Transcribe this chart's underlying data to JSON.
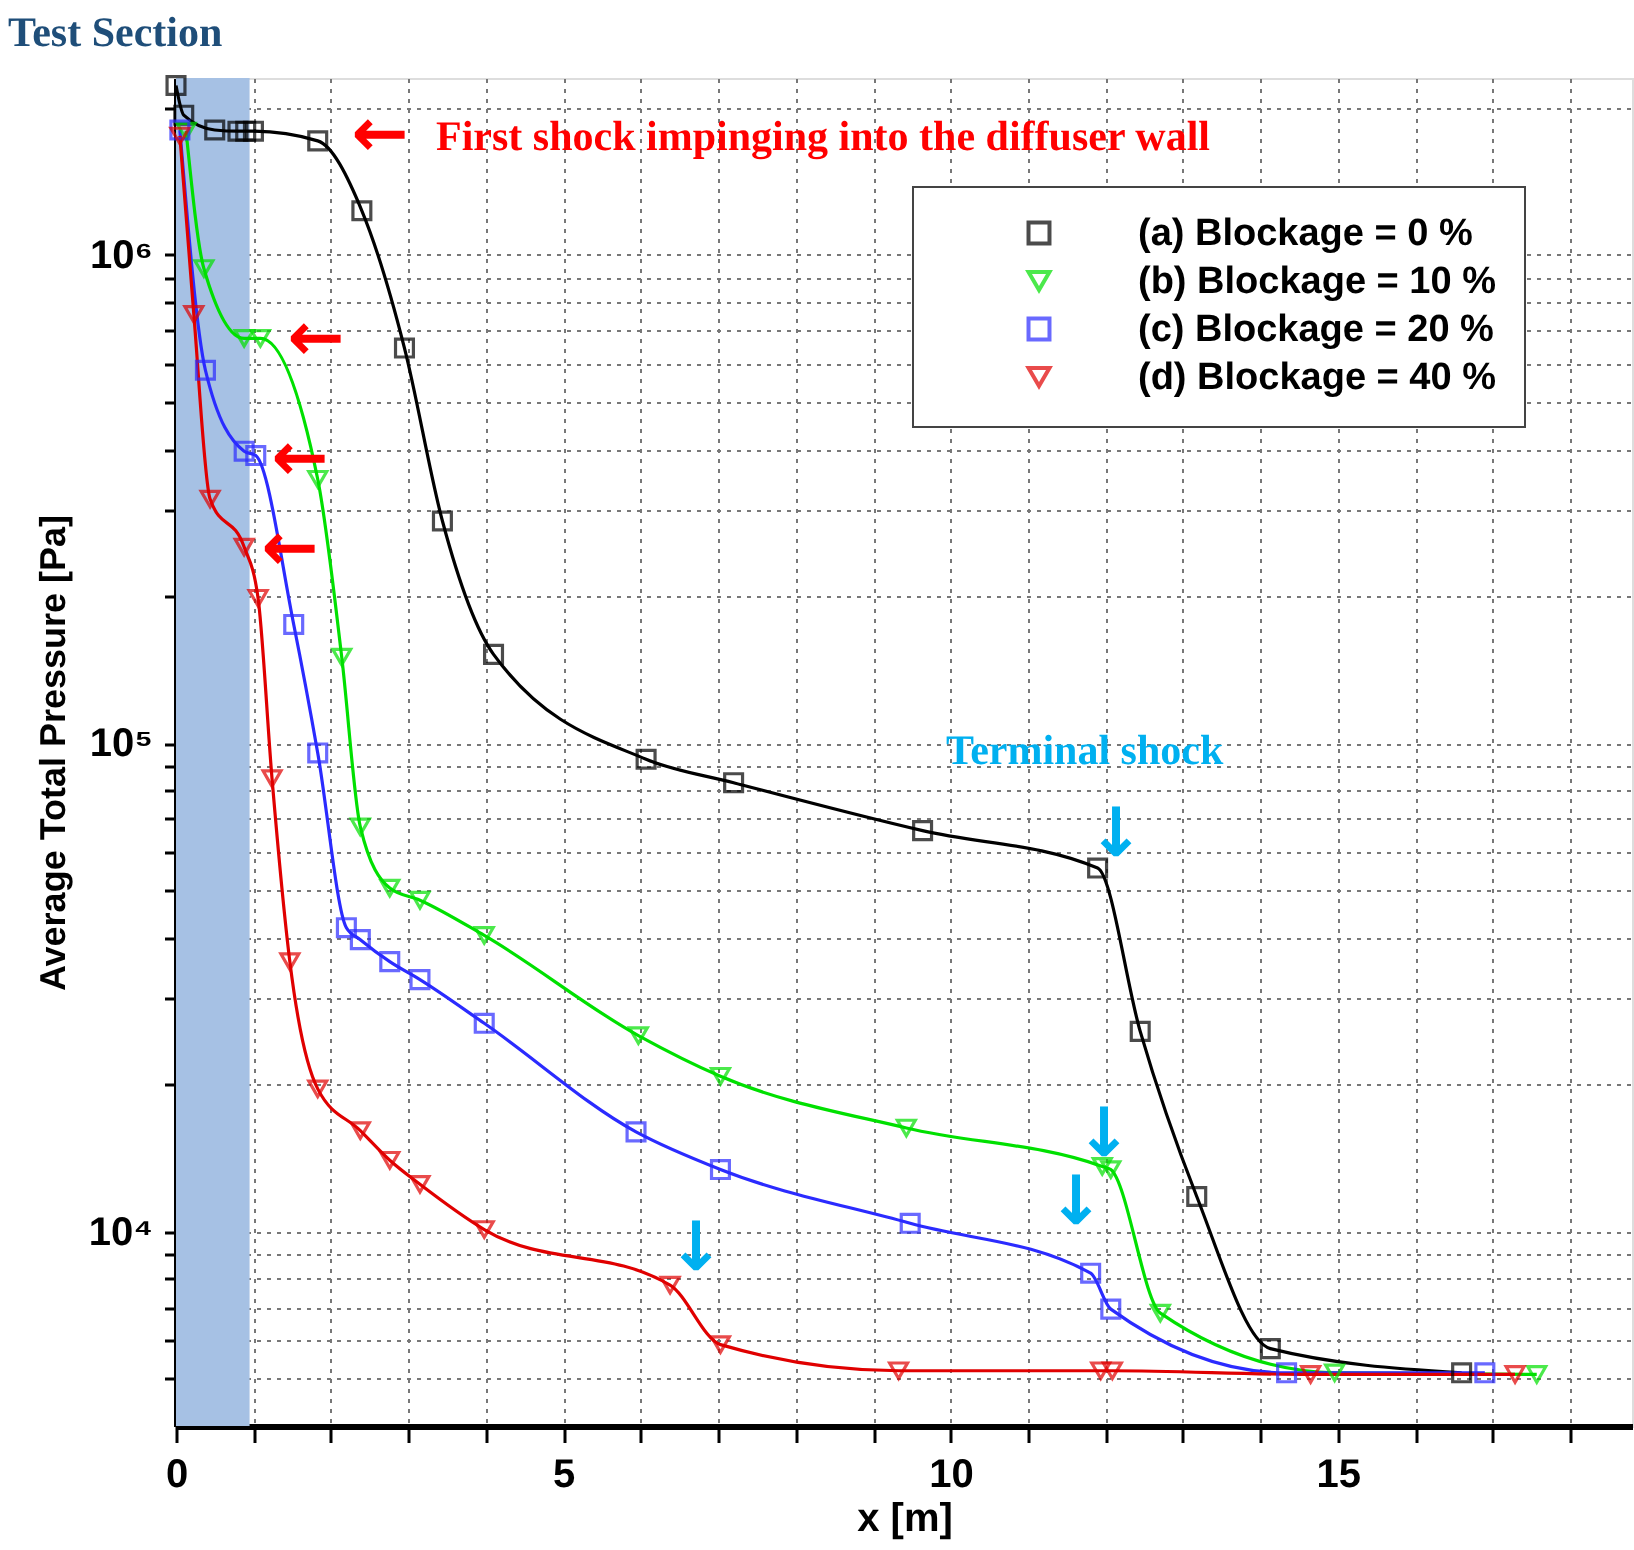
{
  "chart_data": {
    "type": "line",
    "xlabel": "x [m]",
    "ylabel": "Average Total Pressure [Pa]",
    "series": [
      {
        "name": "(a) Blockage = 0 %",
        "color": "#000000",
        "marker": "square",
        "x": [
          0,
          0.1,
          0.5,
          0.8,
          0.9,
          1.0,
          1.83,
          2.4,
          2.95,
          3.44,
          4.1,
          6.07,
          7.2,
          9.64,
          11.9,
          12.45,
          13.18,
          14.13,
          16.6
        ],
        "values": [
          2220000,
          1930000,
          1800000,
          1790000,
          1790000,
          1790000,
          1710000,
          1230000,
          644000,
          285000,
          152000,
          92700,
          83000,
          66200,
          55500,
          25700,
          11800,
          5760,
          5140
        ]
      },
      {
        "name": "(b) Blockage = 10 %",
        "color": "#00e000",
        "marker": "triangle-down",
        "x": [
          0.13,
          0.36,
          0.88,
          1.09,
          1.83,
          2.14,
          2.38,
          2.76,
          3.15,
          3.98,
          5.97,
          7.03,
          9.43,
          11.96,
          12.07,
          12.71,
          14.96,
          17.57
        ],
        "values": [
          1790000,
          937000,
          674000,
          674000,
          347000,
          150000,
          67400,
          50500,
          47700,
          40400,
          25200,
          20800,
          16300,
          13600,
          13400,
          6810,
          5140,
          5100
        ]
      },
      {
        "name": "(c) Blockage = 20 %",
        "color": "#2b2bff",
        "marker": "square",
        "x": [
          0.05,
          0.38,
          0.88,
          1.03,
          1.52,
          1.83,
          2.2,
          2.38,
          2.76,
          3.15,
          3.98,
          5.94,
          7.03,
          9.48,
          11.81,
          12.07,
          14.34,
          16.9
        ],
        "values": [
          1800000,
          580000,
          396000,
          388000,
          175000,
          95500,
          41900,
          39600,
          35700,
          32800,
          26700,
          16000,
          13400,
          10400,
          8220,
          6940,
          5140,
          5140
        ]
      },
      {
        "name": "(d) Blockage = 40 %",
        "color": "#e00000",
        "marker": "triangle-down",
        "x": [
          0.05,
          0.23,
          0.44,
          0.88,
          1.06,
          1.24,
          1.47,
          1.83,
          2.38,
          2.76,
          3.15,
          3.98,
          6.38,
          7.03,
          9.33,
          11.94,
          12.09,
          14.65,
          17.29
        ],
        "values": [
          1750000,
          755000,
          316000,
          252000,
          198000,
          84600,
          35700,
          19600,
          16100,
          14000,
          12500,
          10100,
          7770,
          5870,
          5190,
          5190,
          5190,
          5100,
          5100
        ]
      }
    ],
    "xlim": [
      0,
      18.8
    ],
    "xticks": [
      0,
      {
        "value": 1,
        "label": null
      },
      {
        "value": 2,
        "label": null
      },
      {
        "value": 3,
        "label": null
      },
      {
        "value": 4,
        "label": null
      },
      5,
      {
        "value": 6,
        "label": null
      },
      {
        "value": 7,
        "label": null
      },
      {
        "value": 8,
        "label": null
      },
      {
        "value": 9,
        "label": null
      },
      10,
      {
        "value": 11,
        "label": null
      },
      {
        "value": 12,
        "label": null
      },
      {
        "value": 13,
        "label": null
      },
      {
        "value": 14,
        "label": null
      },
      15,
      {
        "value": 16,
        "label": null
      },
      {
        "value": 17,
        "label": null
      },
      {
        "value": 18,
        "label": null
      }
    ],
    "ylim": [
      4000,
      2300000
    ],
    "yticks": [
      {
        "value": 5000,
        "label": null
      },
      {
        "value": 6000,
        "label": null
      },
      {
        "value": 7000,
        "label": null
      },
      {
        "value": 8000,
        "label": null
      },
      {
        "value": 9000,
        "label": null
      },
      {
        "value": 10000,
        "label": "10⁴"
      },
      {
        "value": 20000,
        "label": null
      },
      {
        "value": 30000,
        "label": null
      },
      {
        "value": 40000,
        "label": null
      },
      {
        "value": 50000,
        "label": null
      },
      {
        "value": 60000,
        "label": null
      },
      {
        "value": 70000,
        "label": null
      },
      {
        "value": 80000,
        "label": null
      },
      {
        "value": 90000,
        "label": null
      },
      {
        "value": 100000,
        "label": "10⁵"
      },
      {
        "value": 200000,
        "label": null
      },
      {
        "value": 300000,
        "label": null
      },
      {
        "value": 400000,
        "label": null
      },
      {
        "value": 500000,
        "label": null
      },
      {
        "value": 600000,
        "label": null
      },
      {
        "value": 700000,
        "label": null
      },
      {
        "value": 800000,
        "label": null
      },
      {
        "value": 900000,
        "label": null
      },
      {
        "value": 1000000,
        "label": "10⁶"
      },
      {
        "value": 2000000,
        "label": null
      }
    ],
    "log": "y",
    "grid": true,
    "legend": "top right",
    "line_style": "solid",
    "bands": [
      {
        "axis": "x",
        "from": 0,
        "to": 0.95,
        "label": "Test Section",
        "color": "#a6c1e4"
      }
    ],
    "annotations": [
      "First shock impinging into the diffuser wall",
      "Terminal shock",
      "←",
      "←",
      "←",
      "←",
      "↓",
      "↓",
      "↓",
      "↓"
    ]
  }
}
